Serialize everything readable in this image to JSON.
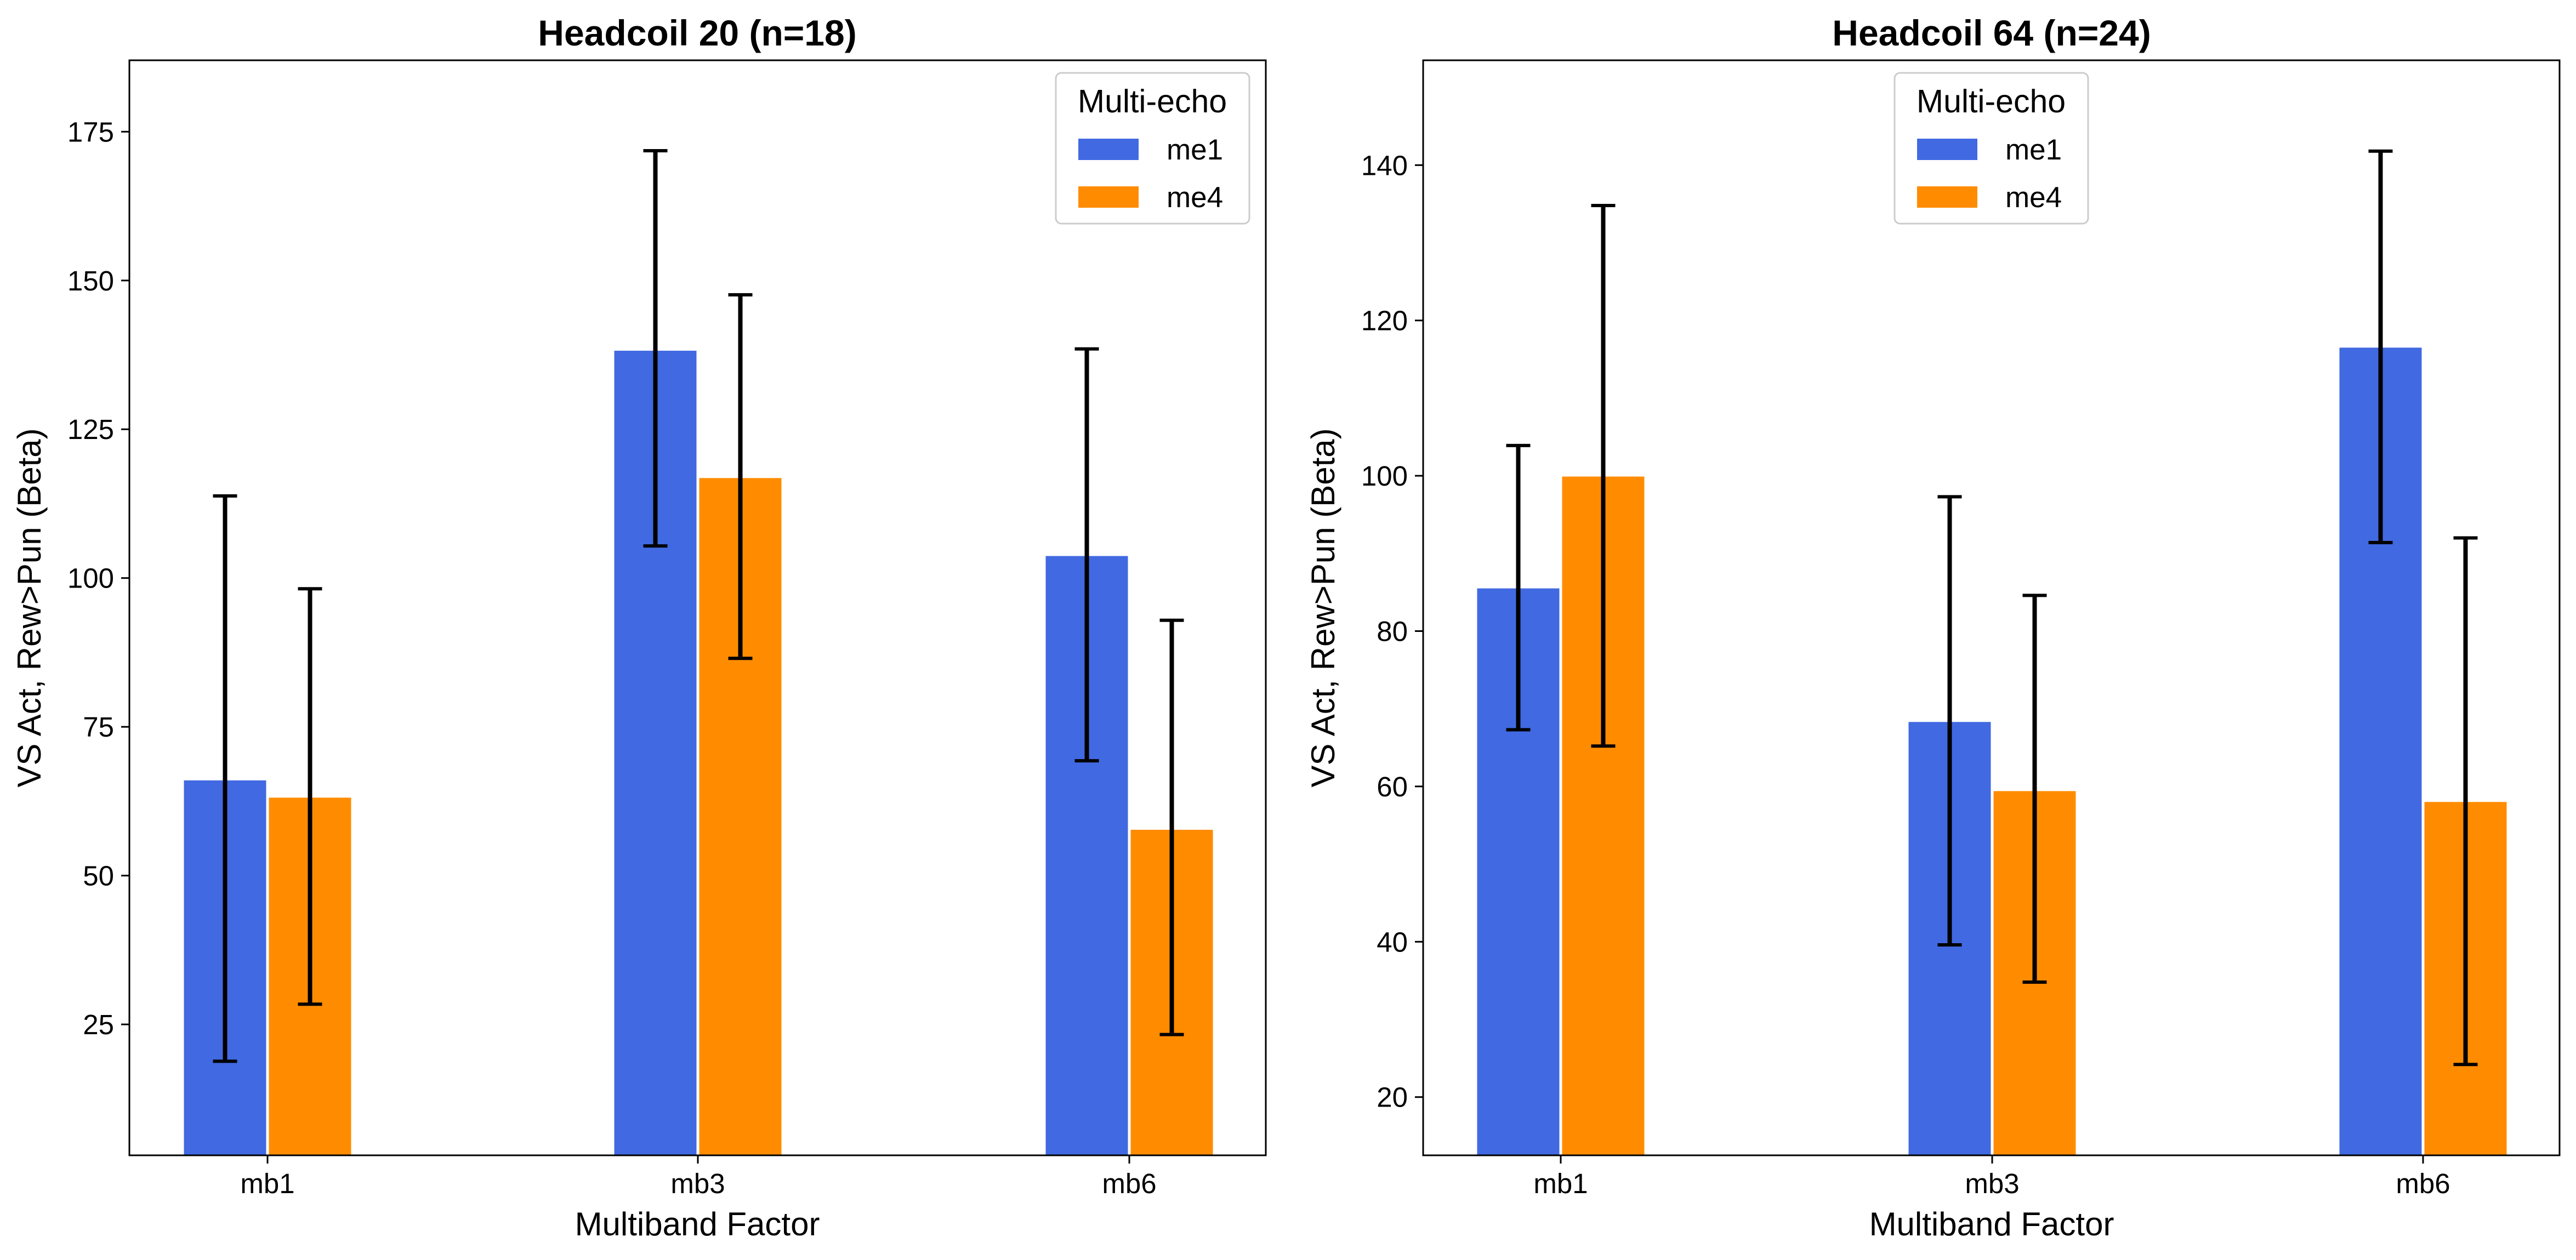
{
  "colors": {
    "me1": "#4169E1",
    "me4": "#FF8C00",
    "errorbar": "#000000",
    "axes": "#000000"
  },
  "chart_data": [
    {
      "type": "bar",
      "title": "Headcoil 20 (n=18)",
      "xlabel": "Multiband Factor",
      "ylabel": "VS Act, Rew>Pun (Beta)",
      "categories": [
        "mb1",
        "mb3",
        "mb6"
      ],
      "ylim": [
        3,
        187
      ],
      "yticks": [
        25,
        50,
        75,
        100,
        125,
        150,
        175
      ],
      "legend": {
        "title": "Multi-echo",
        "position": "top-right"
      },
      "series": [
        {
          "name": "me1",
          "values": [
            66,
            138.2,
            103.7
          ],
          "err_low": [
            18.8,
            105.4,
            69.3
          ],
          "err_high": [
            113.8,
            171.8,
            138.5
          ]
        },
        {
          "name": "me4",
          "values": [
            63.1,
            116.8,
            57.7
          ],
          "err_low": [
            28.4,
            86.5,
            23.3
          ],
          "err_high": [
            98.2,
            147.6,
            92.9
          ]
        }
      ]
    },
    {
      "type": "bar",
      "title": "Headcoil 64 (n=24)",
      "xlabel": "Multiband Factor",
      "ylabel": "VS Act, Rew>Pun (Beta)",
      "categories": [
        "mb1",
        "mb3",
        "mb6"
      ],
      "ylim": [
        12.5,
        153.5
      ],
      "yticks": [
        20,
        40,
        60,
        80,
        100,
        120,
        140
      ],
      "legend": {
        "title": "Multi-echo",
        "position": "upper-center"
      },
      "series": [
        {
          "name": "me1",
          "values": [
            85.5,
            68.3,
            116.5
          ],
          "err_low": [
            67.3,
            39.6,
            91.4
          ],
          "err_high": [
            103.9,
            97.3,
            141.8
          ]
        },
        {
          "name": "me4",
          "values": [
            99.9,
            59.4,
            58
          ],
          "err_low": [
            65.2,
            34.8,
            24.2
          ],
          "err_high": [
            134.8,
            84.6,
            92
          ]
        }
      ]
    }
  ]
}
